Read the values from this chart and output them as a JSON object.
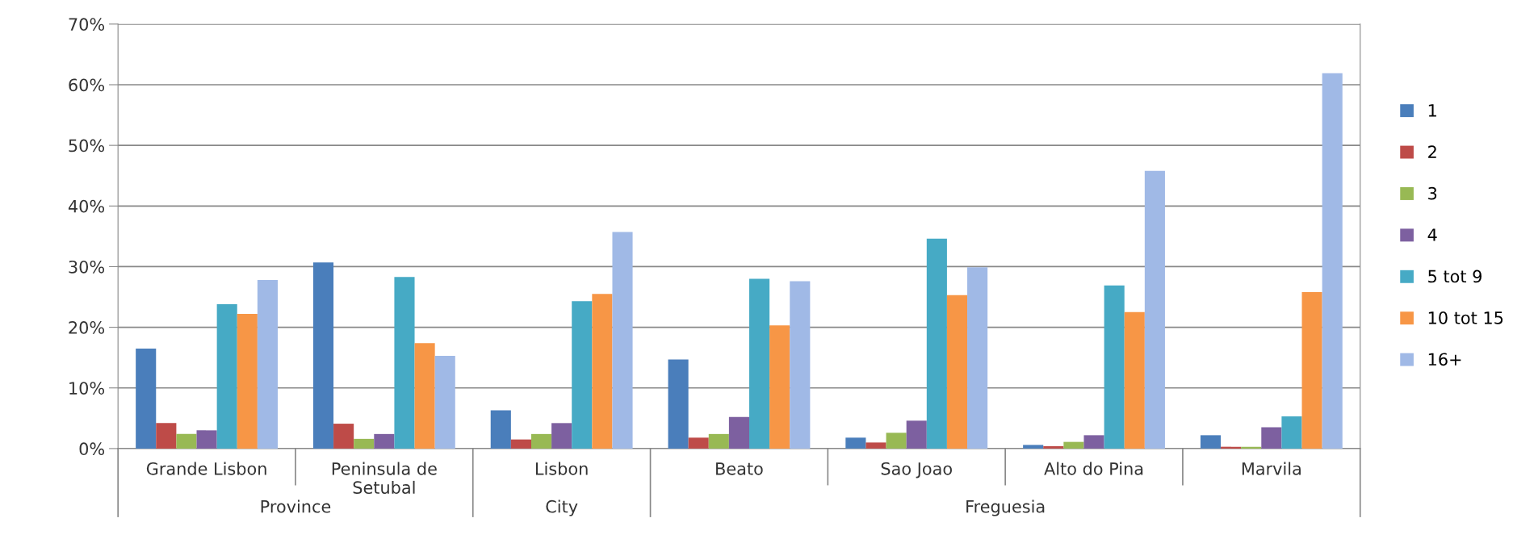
{
  "chart_data": {
    "type": "bar",
    "categories": [
      "Grande Lisbon",
      "Peninsula de\nSetubal",
      "Lisbon",
      "Beato",
      "Sao Joao",
      "Alto do Pina",
      "Marvila"
    ],
    "series": [
      {
        "name": "1",
        "color": "#4a7ebb",
        "values": [
          16.5,
          30.7,
          6.3,
          14.7,
          1.8,
          0.6,
          2.2
        ]
      },
      {
        "name": "2",
        "color": "#be4b48",
        "values": [
          4.2,
          4.1,
          1.5,
          1.8,
          1.0,
          0.4,
          0.3
        ]
      },
      {
        "name": "3",
        "color": "#98b954",
        "values": [
          2.4,
          1.6,
          2.4,
          2.4,
          2.6,
          1.1,
          0.3
        ]
      },
      {
        "name": "4",
        "color": "#7d60a0",
        "values": [
          3.0,
          2.4,
          4.2,
          5.2,
          4.6,
          2.2,
          3.5
        ]
      },
      {
        "name": "5 tot 9",
        "color": "#46aac5",
        "values": [
          23.8,
          28.3,
          24.3,
          28.0,
          34.6,
          26.9,
          5.3
        ]
      },
      {
        "name": "10 tot 15",
        "color": "#f79646",
        "values": [
          22.2,
          17.4,
          25.5,
          20.3,
          25.3,
          22.5,
          25.8
        ]
      },
      {
        "name": "16+",
        "color": "#a0b9e6",
        "values": [
          27.8,
          15.3,
          35.7,
          27.6,
          29.9,
          45.8,
          61.9
        ]
      }
    ],
    "ylim": [
      0,
      70
    ],
    "yticks": [
      {
        "value": 0,
        "label": "0%"
      },
      {
        "value": 10,
        "label": "10%"
      },
      {
        "value": 20,
        "label": "20%"
      },
      {
        "value": 30,
        "label": "30%"
      },
      {
        "value": 40,
        "label": "40%"
      },
      {
        "value": 50,
        "label": "50%"
      },
      {
        "value": 60,
        "label": "60%"
      },
      {
        "value": 70,
        "label": "70%"
      }
    ],
    "grid": "y",
    "legend": "right",
    "annotations": [
      "Province",
      "City",
      "Freguesia"
    ]
  }
}
